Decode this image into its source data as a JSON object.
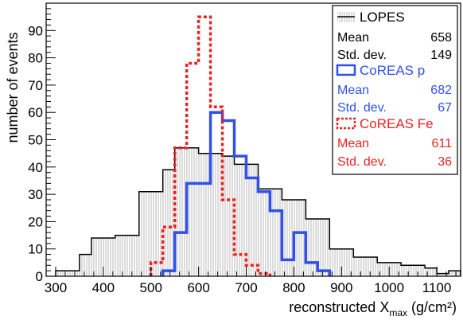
{
  "chart_data": {
    "type": "bar",
    "xlabel_main": "reconstructed X",
    "xlabel_sub": "max",
    "xlabel_unit": "(g/cm²)",
    "ylabel": "number of events",
    "xlim": [
      280,
      1150
    ],
    "ylim": [
      0,
      100
    ],
    "x_ticks": [
      300,
      400,
      500,
      600,
      700,
      800,
      900,
      1000,
      1100
    ],
    "y_ticks": [
      0,
      10,
      20,
      30,
      40,
      50,
      60,
      70,
      80,
      90
    ],
    "grid": false,
    "legend_position": "top-right",
    "series": [
      {
        "name": "LOPES",
        "style": "solid-hatched",
        "color": "#000000",
        "bin_edges": [
          300,
          325,
          350,
          375,
          400,
          425,
          450,
          475,
          500,
          525,
          550,
          575,
          600,
          625,
          650,
          675,
          700,
          725,
          750,
          775,
          800,
          825,
          850,
          875,
          900,
          925,
          950,
          975,
          1000,
          1025,
          1050,
          1075,
          1100,
          1125,
          1150
        ],
        "counts": [
          2,
          2,
          8,
          14,
          14,
          15,
          15,
          31,
          31,
          39,
          47,
          47,
          45,
          45,
          44,
          41,
          41,
          32,
          32,
          28,
          28,
          21,
          21,
          10,
          10,
          7,
          7,
          5,
          5,
          4,
          4,
          3,
          1,
          2
        ],
        "mean_label": "Mean",
        "mean_value": "658",
        "std_label": "Std. dev.",
        "std_value": "149"
      },
      {
        "name": "CoREAS p",
        "style": "solid-thick",
        "color": "#3050e8",
        "bin_edges": [
          525,
          550,
          575,
          600,
          625,
          650,
          675,
          700,
          725,
          750,
          775,
          800,
          825,
          850,
          875
        ],
        "counts": [
          2,
          16,
          34,
          34,
          60,
          57,
          44,
          36,
          31,
          24,
          6,
          16,
          5,
          2
        ],
        "mean_label": "Mean",
        "mean_value": "682",
        "std_label": "Std. dev.",
        "std_value": "67"
      },
      {
        "name": "CoREAS Fe",
        "style": "dotted",
        "color": "#ee2222",
        "bin_edges": [
          500,
          525,
          550,
          575,
          600,
          625,
          650,
          675,
          700,
          725,
          750
        ],
        "counts": [
          5,
          18,
          47,
          78,
          95,
          62,
          28,
          8,
          4,
          1
        ],
        "mean_label": "Mean",
        "mean_value": "611",
        "std_label": "Std. dev.",
        "std_value": "36"
      }
    ]
  }
}
